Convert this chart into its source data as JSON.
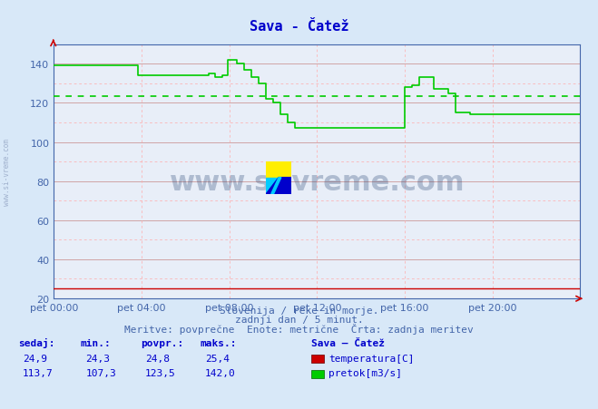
{
  "title": "Sava - Čatež",
  "title_color": "#0000cc",
  "bg_color": "#d8e8f8",
  "plot_bg_color": "#e8eef8",
  "xlabel_color": "#4466aa",
  "ylabel_color": "#4466aa",
  "xlim": [
    0,
    288
  ],
  "ylim": [
    20,
    150
  ],
  "yticks": [
    20,
    40,
    60,
    80,
    100,
    120,
    140
  ],
  "xtick_labels": [
    "pet 00:00",
    "pet 04:00",
    "pet 08:00",
    "pet 12:00",
    "pet 16:00",
    "pet 20:00"
  ],
  "xtick_positions": [
    0,
    48,
    96,
    144,
    192,
    240
  ],
  "avg_pretok": 123.5,
  "footer_line1": "Slovenija / reke in morje.",
  "footer_line2": "zadnji dan / 5 minut.",
  "footer_line3": "Meritve: povprečne  Enote: metrične  Črta: zadnja meritev",
  "footer_color": "#4466aa",
  "table_headers": [
    "sedaj:",
    "min.:",
    "povpr.:",
    "maks.:"
  ],
  "table_color": "#0000cc",
  "temp_row": [
    "24,9",
    "24,3",
    "24,8",
    "25,4"
  ],
  "pretok_row": [
    "113,7",
    "107,3",
    "123,5",
    "142,0"
  ],
  "legend_title": "Sava – Čatež",
  "legend_items": [
    {
      "label": "temperatura[C]",
      "color": "#cc0000"
    },
    {
      "label": "pretok[m3/s]",
      "color": "#00cc00"
    }
  ],
  "temp_data": [
    [
      0,
      24.9
    ],
    [
      288,
      24.9
    ]
  ],
  "pretok_data": [
    [
      0,
      139
    ],
    [
      46,
      139
    ],
    [
      46,
      134
    ],
    [
      80,
      134
    ],
    [
      85,
      135
    ],
    [
      88,
      133
    ],
    [
      92,
      134
    ],
    [
      95,
      142
    ],
    [
      100,
      140
    ],
    [
      104,
      137
    ],
    [
      108,
      133
    ],
    [
      112,
      130
    ],
    [
      116,
      122
    ],
    [
      120,
      120
    ],
    [
      124,
      114
    ],
    [
      128,
      110
    ],
    [
      132,
      107
    ],
    [
      144,
      107
    ],
    [
      148,
      107
    ],
    [
      152,
      107
    ],
    [
      156,
      107
    ],
    [
      160,
      107
    ],
    [
      164,
      107
    ],
    [
      168,
      107
    ],
    [
      172,
      107
    ],
    [
      192,
      107
    ],
    [
      192,
      128
    ],
    [
      196,
      129
    ],
    [
      200,
      133
    ],
    [
      204,
      133
    ],
    [
      208,
      127
    ],
    [
      212,
      127
    ],
    [
      216,
      125
    ],
    [
      220,
      115
    ],
    [
      224,
      115
    ],
    [
      228,
      114
    ],
    [
      232,
      114
    ],
    [
      236,
      114
    ],
    [
      240,
      114
    ],
    [
      244,
      114
    ],
    [
      248,
      114
    ],
    [
      252,
      114
    ],
    [
      256,
      114
    ],
    [
      260,
      114
    ],
    [
      264,
      114
    ],
    [
      268,
      114
    ],
    [
      272,
      114
    ],
    [
      276,
      114
    ],
    [
      280,
      114
    ],
    [
      284,
      114
    ],
    [
      288,
      114
    ]
  ],
  "watermark_text": "www.si-vreme.com",
  "watermark_color": "#1a3a6a",
  "watermark_alpha": 0.28,
  "side_text": "www.si-vreme.com"
}
